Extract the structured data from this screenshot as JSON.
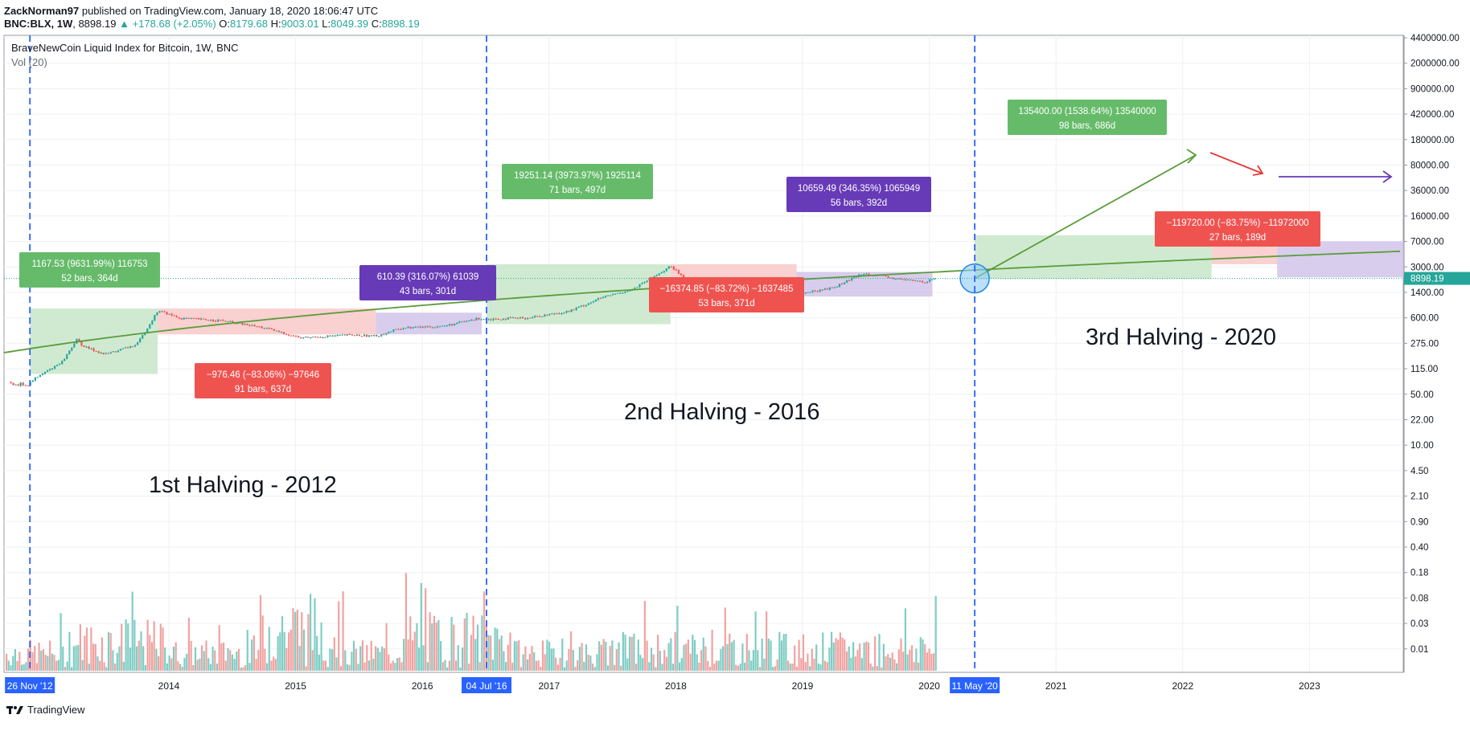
{
  "header": {
    "author": "ZackNorman97",
    "published_text": "published on TradingView.com, January 18, 2020 18:06:47 UTC",
    "symbol": "BNC:BLX, 1W",
    "last": "8898.19",
    "change": "+178.68 (+2.05%)",
    "o_label": "O:",
    "o": "8179.68",
    "h_label": "H:",
    "h": "9003.01",
    "l_label": "L:",
    "l": "8049.39",
    "c_label": "C:",
    "c": "8898.19"
  },
  "pane": {
    "title": "BraveNewCoin Liquid Index for Bitcoin, 1W, BNC",
    "indicator": "Vol (20)"
  },
  "footer": {
    "brand": "TradingView"
  },
  "colors": {
    "up": "#26a69a",
    "down": "#ef5350",
    "vol_up": "#7fcdc4",
    "vol_down": "#f0a3a1",
    "green_box": "#c8e6c9",
    "red_box": "#f8c9c8",
    "purple_box": "#d1c4e9",
    "green_label": "#66bb6a",
    "red_label": "#ef5350",
    "purple_label": "#673ab7",
    "halving_line": "#2962ff",
    "curve": "#5a9c3a"
  },
  "chart_data": {
    "type": "candlestick",
    "log_scale": true,
    "grid": true,
    "x_axis": {
      "ticks": [
        "2014",
        "2015",
        "2016",
        "2017",
        "2018",
        "2019",
        "2020",
        "2021",
        "2022",
        "2023"
      ],
      "highlighted": [
        "26 Nov '12",
        "04 Jul '16",
        "11 May '20"
      ]
    },
    "y_axis": {
      "ticks": [
        "4400000.00",
        "2000000.00",
        "900000.00",
        "420000.00",
        "180000.00",
        "80000.00",
        "36000.00",
        "16000.00",
        "7000.00",
        "3000.00",
        "1400.00",
        "600.00",
        "275.00",
        "115.00",
        "50.00",
        "22.00",
        "10.00",
        "4.50",
        "2.10",
        "0.90",
        "0.40",
        "0.18",
        "0.08",
        "0.03",
        "0.01"
      ],
      "last_price": "8898.19"
    },
    "price_path": [
      {
        "date": "2012-11-26",
        "price": 12
      },
      {
        "date": "2013-03-01",
        "price": 45
      },
      {
        "date": "2013-04-10",
        "price": 180
      },
      {
        "date": "2013-05-01",
        "price": 115
      },
      {
        "date": "2013-07-01",
        "price": 70
      },
      {
        "date": "2013-10-01",
        "price": 130
      },
      {
        "date": "2013-12-01",
        "price": 1150
      },
      {
        "date": "2014-02-01",
        "price": 700
      },
      {
        "date": "2014-06-01",
        "price": 600
      },
      {
        "date": "2014-10-01",
        "price": 380
      },
      {
        "date": "2015-01-15",
        "price": 200
      },
      {
        "date": "2015-06-01",
        "price": 240
      },
      {
        "date": "2015-08-20",
        "price": 225
      },
      {
        "date": "2015-11-05",
        "price": 380
      },
      {
        "date": "2016-03-01",
        "price": 420
      },
      {
        "date": "2016-06-15",
        "price": 700
      },
      {
        "date": "2016-07-04",
        "price": 660
      },
      {
        "date": "2016-11-01",
        "price": 720
      },
      {
        "date": "2017-03-01",
        "price": 1100
      },
      {
        "date": "2017-06-01",
        "price": 2600
      },
      {
        "date": "2017-09-01",
        "price": 4500
      },
      {
        "date": "2017-12-17",
        "price": 19251
      },
      {
        "date": "2018-02-05",
        "price": 7500
      },
      {
        "date": "2018-06-01",
        "price": 6500
      },
      {
        "date": "2018-10-01",
        "price": 6400
      },
      {
        "date": "2018-12-15",
        "price": 3200
      },
      {
        "date": "2019-04-01",
        "price": 5000
      },
      {
        "date": "2019-06-26",
        "price": 12500
      },
      {
        "date": "2019-10-01",
        "price": 8500
      },
      {
        "date": "2019-12-20",
        "price": 7200
      },
      {
        "date": "2020-01-18",
        "price": 8898.19
      }
    ],
    "measurements": [
      {
        "color": "green",
        "line1": "1167.53 (9631.99%) 116753",
        "line2": "52 bars, 364d"
      },
      {
        "color": "red",
        "line1": "−976.46 (−83.06%) −97646",
        "line2": "91 bars, 637d"
      },
      {
        "color": "purple",
        "line1": "610.39 (316.07%) 61039",
        "line2": "43 bars, 301d"
      },
      {
        "color": "green",
        "line1": "19251.14 (3973.97%) 1925114",
        "line2": "71 bars, 497d"
      },
      {
        "color": "red",
        "line1": "−16374.85 (−83.72%) −1637485",
        "line2": "53 bars, 371d"
      },
      {
        "color": "purple",
        "line1": "10659.49 (346.35%) 1065949",
        "line2": "56 bars, 392d"
      },
      {
        "color": "green",
        "line1": "135400.00 (1538.64%) 13540000",
        "line2": "98 bars, 686d"
      },
      {
        "color": "red",
        "line1": "−119720.00 (−83.75%) −11972000",
        "line2": "27 bars, 189d"
      }
    ],
    "annotations": [
      "1st Halving - 2012",
      "2nd Halving - 2016",
      "3rd Halving - 2020"
    ]
  }
}
